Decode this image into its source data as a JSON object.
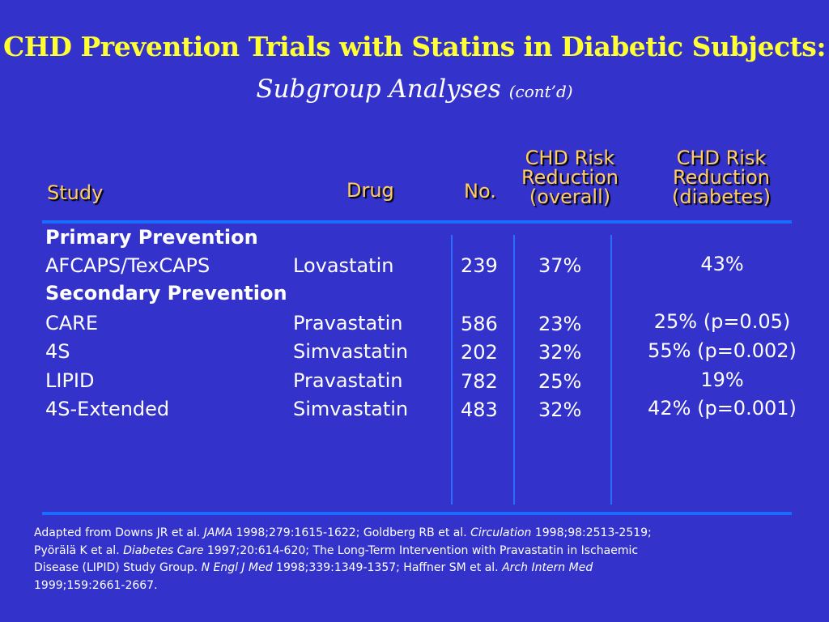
{
  "title": "CHD Prevention Trials with Statins in Diabetic Subjects:",
  "subtitle": "Subgroup Analyses",
  "subtitle_small": "(cont’d)",
  "headers": {
    "study": "Study",
    "drug": "Drug",
    "no": "No.",
    "overall_l1": "CHD Risk",
    "overall_l2": "Reduction",
    "overall_l3": "(overall)",
    "diabetes_l1": "CHD Risk",
    "diabetes_l2": "Reduction",
    "diabetes_l3": "(diabetes)"
  },
  "sections": {
    "primary": "Primary Prevention",
    "secondary": "Secondary Prevention"
  },
  "rows": [
    {
      "study": "AFCAPS/TexCAPS",
      "drug": "Lovastatin",
      "no": "239",
      "overall": "37%",
      "diabetes": "43%"
    },
    {
      "study": "CARE",
      "drug": "Pravastatin",
      "no": "586",
      "overall": "23%",
      "diabetes": "25% (p=0.05)"
    },
    {
      "study": "4S",
      "drug": "Simvastatin",
      "no": "202",
      "overall": "32%",
      "diabetes": "55% (p=0.002)"
    },
    {
      "study": "LIPID",
      "drug": "Pravastatin",
      "no": "782",
      "overall": "25%",
      "diabetes": "19%"
    },
    {
      "study": "4S-Extended",
      "drug": "Simvastatin",
      "no": "483",
      "overall": "32%",
      "diabetes": "42% (p=0.001)"
    }
  ],
  "footnote": {
    "t1": "Adapted from Downs JR et al. ",
    "j1": "JAMA",
    "t2": " 1998;279:1615-1622; Goldberg RB et al. ",
    "j2": "Circulation",
    "t3": " 1998;98:2513-2519; Pyörälä K et al. ",
    "j3": "Diabetes Care",
    "t4": " 1997;20:614-620; The Long-Term Intervention with Pravastatin in Ischaemic  Disease (LIPID) Study Group. ",
    "j4": "N Engl J Med",
    "t5": " 1998;339:1349-1357; Haffner SM et al. ",
    "j5": "Arch Intern Med",
    "t6": " 1999;159:2661-2667."
  },
  "colors": {
    "background": "#3333cc",
    "title": "#ffff33",
    "header": "#ffcc66",
    "rule": "#1a6bff"
  }
}
